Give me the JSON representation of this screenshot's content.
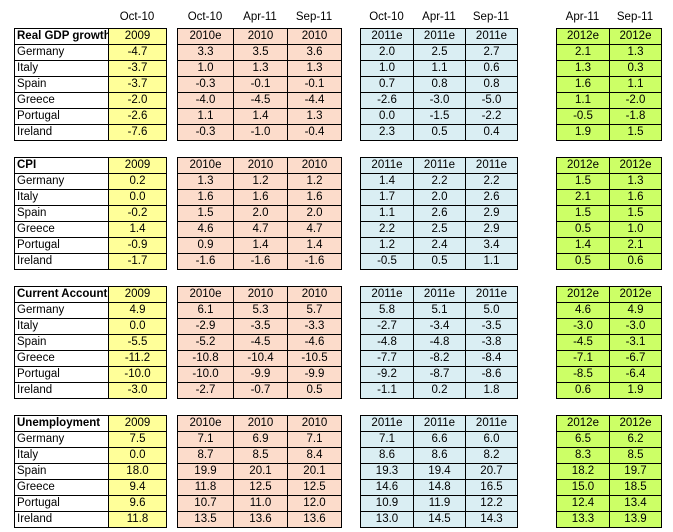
{
  "top_headers": {
    "y": [
      "Oct-10"
    ],
    "p": [
      "Oct-10",
      "Apr-11",
      "Sep-11"
    ],
    "b": [
      "Oct-10",
      "Apr-11",
      "Sep-11"
    ],
    "g": [
      "Apr-11",
      "Sep-11"
    ]
  },
  "sections": [
    {
      "title": "Real GDP growth",
      "head": {
        "y": [
          "2009"
        ],
        "p": [
          "2010e",
          "2010",
          "2010"
        ],
        "b": [
          "2011e",
          "2011e",
          "2011e"
        ],
        "g": [
          "2012e",
          "2012e"
        ]
      },
      "rows": [
        {
          "label": "Germany",
          "y": [
            "-4.7"
          ],
          "p": [
            "3.3",
            "3.5",
            "3.6"
          ],
          "b": [
            "2.0",
            "2.5",
            "2.7"
          ],
          "g": [
            "2.1",
            "1.3"
          ]
        },
        {
          "label": "Italy",
          "y": [
            "-3.7"
          ],
          "p": [
            "1.0",
            "1.3",
            "1.3"
          ],
          "b": [
            "1.0",
            "1.1",
            "0.6"
          ],
          "g": [
            "1.3",
            "0.3"
          ]
        },
        {
          "label": "Spain",
          "y": [
            "-3.7"
          ],
          "p": [
            "-0.3",
            "-0.1",
            "-0.1"
          ],
          "b": [
            "0.7",
            "0.8",
            "0.8"
          ],
          "g": [
            "1.6",
            "1.1"
          ]
        },
        {
          "label": "Greece",
          "y": [
            "-2.0"
          ],
          "p": [
            "-4.0",
            "-4.5",
            "-4.4"
          ],
          "b": [
            "-2.6",
            "-3.0",
            "-5.0"
          ],
          "g": [
            "1.1",
            "-2.0"
          ]
        },
        {
          "label": "Portugal",
          "y": [
            "-2.6"
          ],
          "p": [
            "1.1",
            "1.4",
            "1.3"
          ],
          "b": [
            "0.0",
            "-1.5",
            "-2.2"
          ],
          "g": [
            "-0.5",
            "-1.8"
          ]
        },
        {
          "label": "Ireland",
          "y": [
            "-7.6"
          ],
          "p": [
            "-0.3",
            "-1.0",
            "-0.4"
          ],
          "b": [
            "2.3",
            "0.5",
            "0.4"
          ],
          "g": [
            "1.9",
            "1.5"
          ]
        }
      ]
    },
    {
      "title": "CPI",
      "head": {
        "y": [
          "2009"
        ],
        "p": [
          "2010e",
          "2010",
          "2010"
        ],
        "b": [
          "2011e",
          "2011e",
          "2011e"
        ],
        "g": [
          "2012e",
          "2012e"
        ]
      },
      "rows": [
        {
          "label": "Germany",
          "y": [
            "0.2"
          ],
          "p": [
            "1.3",
            "1.2",
            "1.2"
          ],
          "b": [
            "1.4",
            "2.2",
            "2.2"
          ],
          "g": [
            "1.5",
            "1.3"
          ]
        },
        {
          "label": "Italy",
          "y": [
            "0.0"
          ],
          "p": [
            "1.6",
            "1.6",
            "1.6"
          ],
          "b": [
            "1.7",
            "2.0",
            "2.6"
          ],
          "g": [
            "2.1",
            "1.6"
          ]
        },
        {
          "label": "Spain",
          "y": [
            "-0.2"
          ],
          "p": [
            "1.5",
            "2.0",
            "2.0"
          ],
          "b": [
            "1.1",
            "2.6",
            "2.9"
          ],
          "g": [
            "1.5",
            "1.5"
          ]
        },
        {
          "label": "Greece",
          "y": [
            "1.4"
          ],
          "p": [
            "4.6",
            "4.7",
            "4.7"
          ],
          "b": [
            "2.2",
            "2.5",
            "2.9"
          ],
          "g": [
            "0.5",
            "1.0"
          ]
        },
        {
          "label": "Portugal",
          "y": [
            "-0.9"
          ],
          "p": [
            "0.9",
            "1.4",
            "1.4"
          ],
          "b": [
            "1.2",
            "2.4",
            "3.4"
          ],
          "g": [
            "1.4",
            "2.1"
          ]
        },
        {
          "label": "Ireland",
          "y": [
            "-1.7"
          ],
          "p": [
            "-1.6",
            "-1.6",
            "-1.6"
          ],
          "b": [
            "-0.5",
            "0.5",
            "1.1"
          ],
          "g": [
            "0.5",
            "0.6"
          ]
        }
      ]
    },
    {
      "title": "Current Account",
      "head": {
        "y": [
          "2009"
        ],
        "p": [
          "2010e",
          "2010",
          "2010"
        ],
        "b": [
          "2011e",
          "2011e",
          "2011e"
        ],
        "g": [
          "2012e",
          "2012e"
        ]
      },
      "rows": [
        {
          "label": "Germany",
          "y": [
            "4.9"
          ],
          "p": [
            "6.1",
            "5.3",
            "5.7"
          ],
          "b": [
            "5.8",
            "5.1",
            "5.0"
          ],
          "g": [
            "4.6",
            "4.9"
          ]
        },
        {
          "label": "Italy",
          "y": [
            "0.0"
          ],
          "p": [
            "-2.9",
            "-3.5",
            "-3.3"
          ],
          "b": [
            "-2.7",
            "-3.4",
            "-3.5"
          ],
          "g": [
            "-3.0",
            "-3.0"
          ]
        },
        {
          "label": "Spain",
          "y": [
            "-5.5"
          ],
          "p": [
            "-5.2",
            "-4.5",
            "-4.6"
          ],
          "b": [
            "-4.8",
            "-4.8",
            "-3.8"
          ],
          "g": [
            "-4.5",
            "-3.1"
          ]
        },
        {
          "label": "Greece",
          "y": [
            "-11.2"
          ],
          "p": [
            "-10.8",
            "-10.4",
            "-10.5"
          ],
          "b": [
            "-7.7",
            "-8.2",
            "-8.4"
          ],
          "g": [
            "-7.1",
            "-6.7"
          ]
        },
        {
          "label": "Portugal",
          "y": [
            "-10.0"
          ],
          "p": [
            "-10.0",
            "-9.9",
            "-9.9"
          ],
          "b": [
            "-9.2",
            "-8.7",
            "-8.6"
          ],
          "g": [
            "-8.5",
            "-6.4"
          ]
        },
        {
          "label": "Ireland",
          "y": [
            "-3.0"
          ],
          "p": [
            "-2.7",
            "-0.7",
            "0.5"
          ],
          "b": [
            "-1.1",
            "0.2",
            "1.8"
          ],
          "g": [
            "0.6",
            "1.9"
          ]
        }
      ]
    },
    {
      "title": "Unemployment",
      "head": {
        "y": [
          "2009"
        ],
        "p": [
          "2010e",
          "2010",
          "2010"
        ],
        "b": [
          "2011e",
          "2011e",
          "2011e"
        ],
        "g": [
          "2012e",
          "2012e"
        ]
      },
      "rows": [
        {
          "label": "Germany",
          "y": [
            "7.5"
          ],
          "p": [
            "7.1",
            "6.9",
            "7.1"
          ],
          "b": [
            "7.1",
            "6.6",
            "6.0"
          ],
          "g": [
            "6.5",
            "6.2"
          ]
        },
        {
          "label": "Italy",
          "y": [
            "0.0"
          ],
          "p": [
            "8.7",
            "8.5",
            "8.4"
          ],
          "b": [
            "8.6",
            "8.6",
            "8.2"
          ],
          "g": [
            "8.3",
            "8.5"
          ]
        },
        {
          "label": "Spain",
          "y": [
            "18.0"
          ],
          "p": [
            "19.9",
            "20.1",
            "20.1"
          ],
          "b": [
            "19.3",
            "19.4",
            "20.7"
          ],
          "g": [
            "18.2",
            "19.7"
          ]
        },
        {
          "label": "Greece",
          "y": [
            "9.4"
          ],
          "p": [
            "11.8",
            "12.5",
            "12.5"
          ],
          "b": [
            "14.6",
            "14.8",
            "16.5"
          ],
          "g": [
            "15.0",
            "18.5"
          ]
        },
        {
          "label": "Portugal",
          "y": [
            "9.6"
          ],
          "p": [
            "10.7",
            "11.0",
            "12.0"
          ],
          "b": [
            "10.9",
            "11.9",
            "12.2"
          ],
          "g": [
            "12.4",
            "13.4"
          ]
        },
        {
          "label": "Ireland",
          "y": [
            "11.8"
          ],
          "p": [
            "13.5",
            "13.6",
            "13.6"
          ],
          "b": [
            "13.0",
            "14.5",
            "14.3"
          ],
          "g": [
            "13.3",
            "13.9"
          ]
        }
      ]
    }
  ]
}
